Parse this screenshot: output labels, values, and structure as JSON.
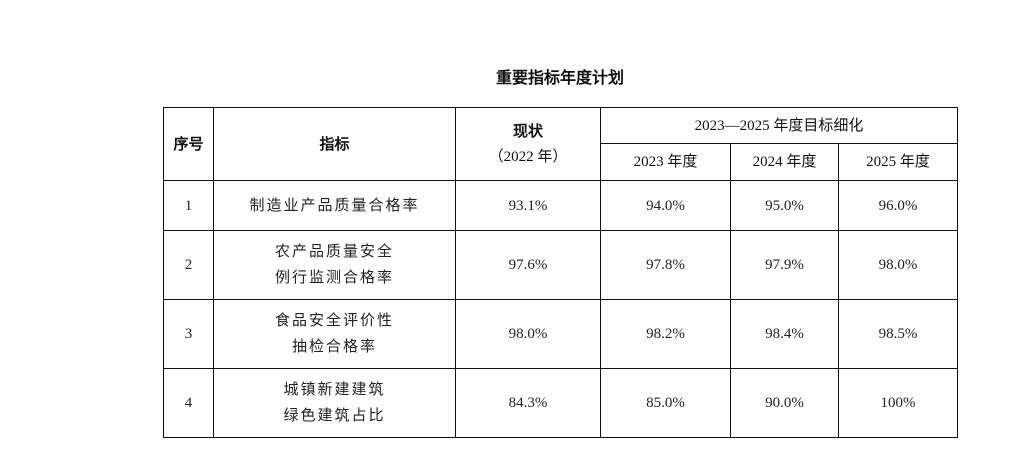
{
  "title": "重要指标年度计划",
  "table": {
    "headers": {
      "index": "序号",
      "indicator": "指标",
      "status_line1": "现状",
      "status_line2": "（2022 年）",
      "group": "2023—2025 年度目标细化",
      "y2023": "2023 年度",
      "y2024": "2024 年度",
      "y2025": "2025 年度"
    },
    "rows": [
      {
        "index": "1",
        "indicator_line1": "制造业产品质量合格率",
        "indicator_line2": "",
        "status": "93.1%",
        "y2023": "94.0%",
        "y2024": "95.0%",
        "y2025": "96.0%"
      },
      {
        "index": "2",
        "indicator_line1": "农产品质量安全",
        "indicator_line2": "例行监测合格率",
        "status": "97.6%",
        "y2023": "97.8%",
        "y2024": "97.9%",
        "y2025": "98.0%"
      },
      {
        "index": "3",
        "indicator_line1": "食品安全评价性",
        "indicator_line2": "抽检合格率",
        "status": "98.0%",
        "y2023": "98.2%",
        "y2024": "98.4%",
        "y2025": "98.5%"
      },
      {
        "index": "4",
        "indicator_line1": "城镇新建建筑",
        "indicator_line2": "绿色建筑占比",
        "status": "84.3%",
        "y2023": "85.0%",
        "y2024": "90.0%",
        "y2025": "100%"
      }
    ]
  }
}
